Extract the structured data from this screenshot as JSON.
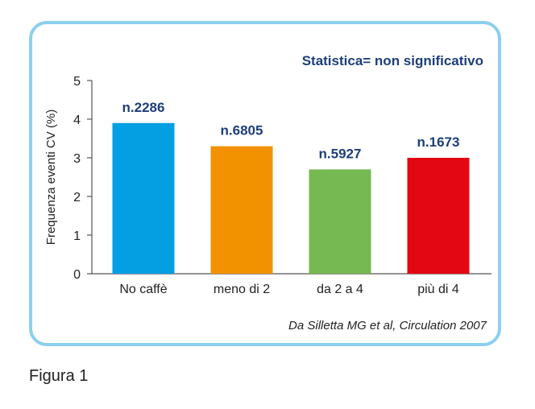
{
  "chart_data": {
    "type": "bar",
    "title": "Statistica= non significativo",
    "ylabel": "Frequenza eventi CV (%)",
    "xlabel": "",
    "ylim": [
      0,
      5
    ],
    "yticks": [
      0,
      1,
      2,
      3,
      4,
      5
    ],
    "grid": false,
    "categories": [
      "No caffè",
      "meno di 2",
      "da 2 a 4",
      "più di 4"
    ],
    "values": [
      3.9,
      3.3,
      2.7,
      3.0
    ],
    "data_labels": [
      "n.2286",
      "n.6805",
      "n.5927",
      "n.1673"
    ],
    "colors": [
      "#049fe3",
      "#f39200",
      "#76b852",
      "#e30613"
    ],
    "label_color": "#1d3e7a",
    "source": "Da Silletta MG et al, Circulation 2007"
  },
  "caption": "Figura 1"
}
